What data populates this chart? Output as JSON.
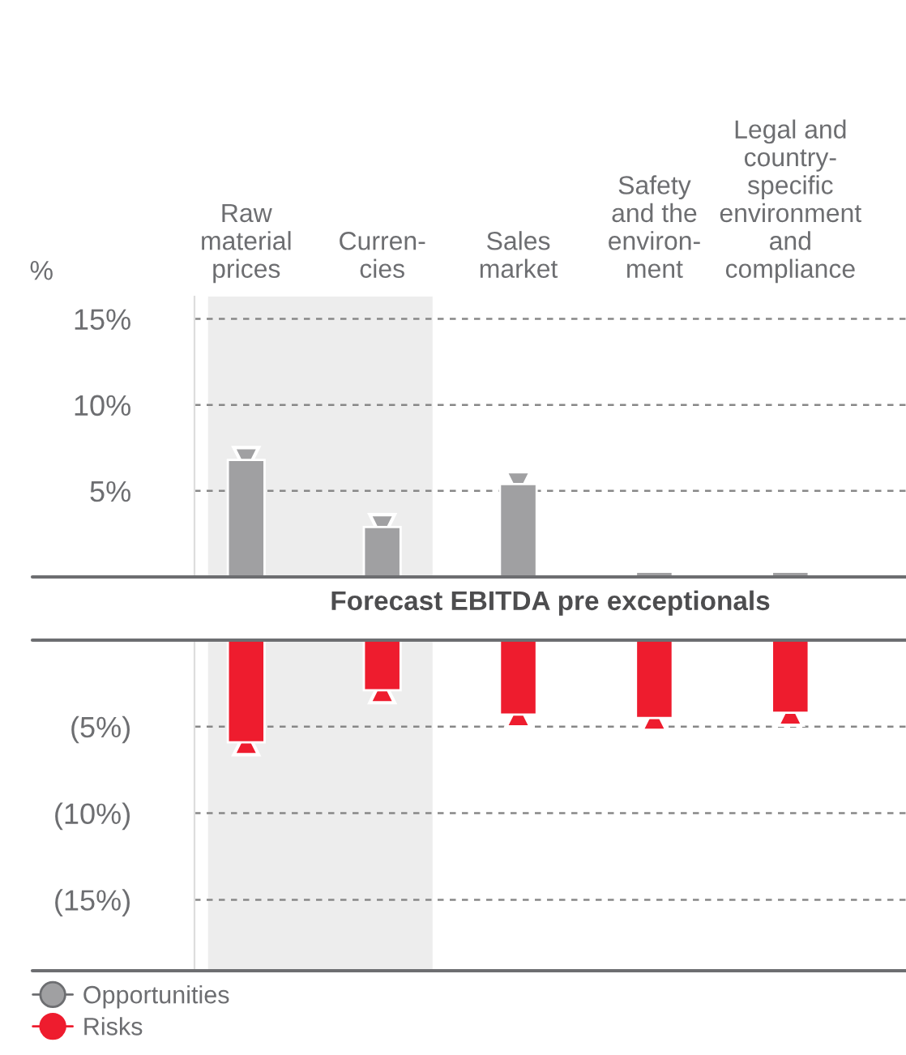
{
  "chart_data": [
    {
      "type": "bar",
      "ylabel": "%",
      "xlabel": "Forecast EBITDA pre exceptionals",
      "categories": [
        "Raw\nmaterial\nprices",
        "Curren-\ncies",
        "Sales\nmarket",
        "Safety\nand the\nenviron-\nment",
        "Legal and\ncountry-\nspecific\nenvironment\nand\ncompliance"
      ],
      "series": [
        {
          "name": "Opportunities",
          "color": "#a0a0a2",
          "values": [
            6.8,
            2.9,
            5.4,
            0.3,
            0.3
          ]
        }
      ],
      "ylim": [
        0,
        16.3
      ],
      "yticks": [
        {
          "value": 5,
          "label": "5%"
        },
        {
          "value": 10,
          "label": "10%"
        },
        {
          "value": 15,
          "label": "15%"
        }
      ],
      "bands": [
        {
          "axis": "x",
          "from": "Raw\nmaterial\nprices",
          "to": "Curren-\ncies",
          "color": "#ededed"
        }
      ],
      "grid": "y"
    },
    {
      "type": "bar",
      "categories": [
        "Raw\nmaterial\nprices",
        "Curren-\ncies",
        "Sales\nmarket",
        "Safety\nand the\nenviron-\nment",
        "Legal and\ncountry-\nspecific\nenvironment\nand\ncompliance"
      ],
      "series": [
        {
          "name": "Risks",
          "color": "#ee1c2e",
          "values": [
            -5.9,
            -2.9,
            -4.3,
            -4.5,
            -4.2
          ]
        }
      ],
      "ylim": [
        -19.1,
        0
      ],
      "yticks": [
        {
          "value": -5,
          "label": "(5%)"
        },
        {
          "value": -10,
          "label": "(10%)"
        },
        {
          "value": -15,
          "label": "(15%)"
        }
      ],
      "bands": [
        {
          "axis": "x",
          "from": "Raw\nmaterial\nprices",
          "to": "Curren-\ncies",
          "color": "#ededed"
        }
      ],
      "grid": "y",
      "tick_labels": "y",
      "legend": "bottom left"
    }
  ]
}
